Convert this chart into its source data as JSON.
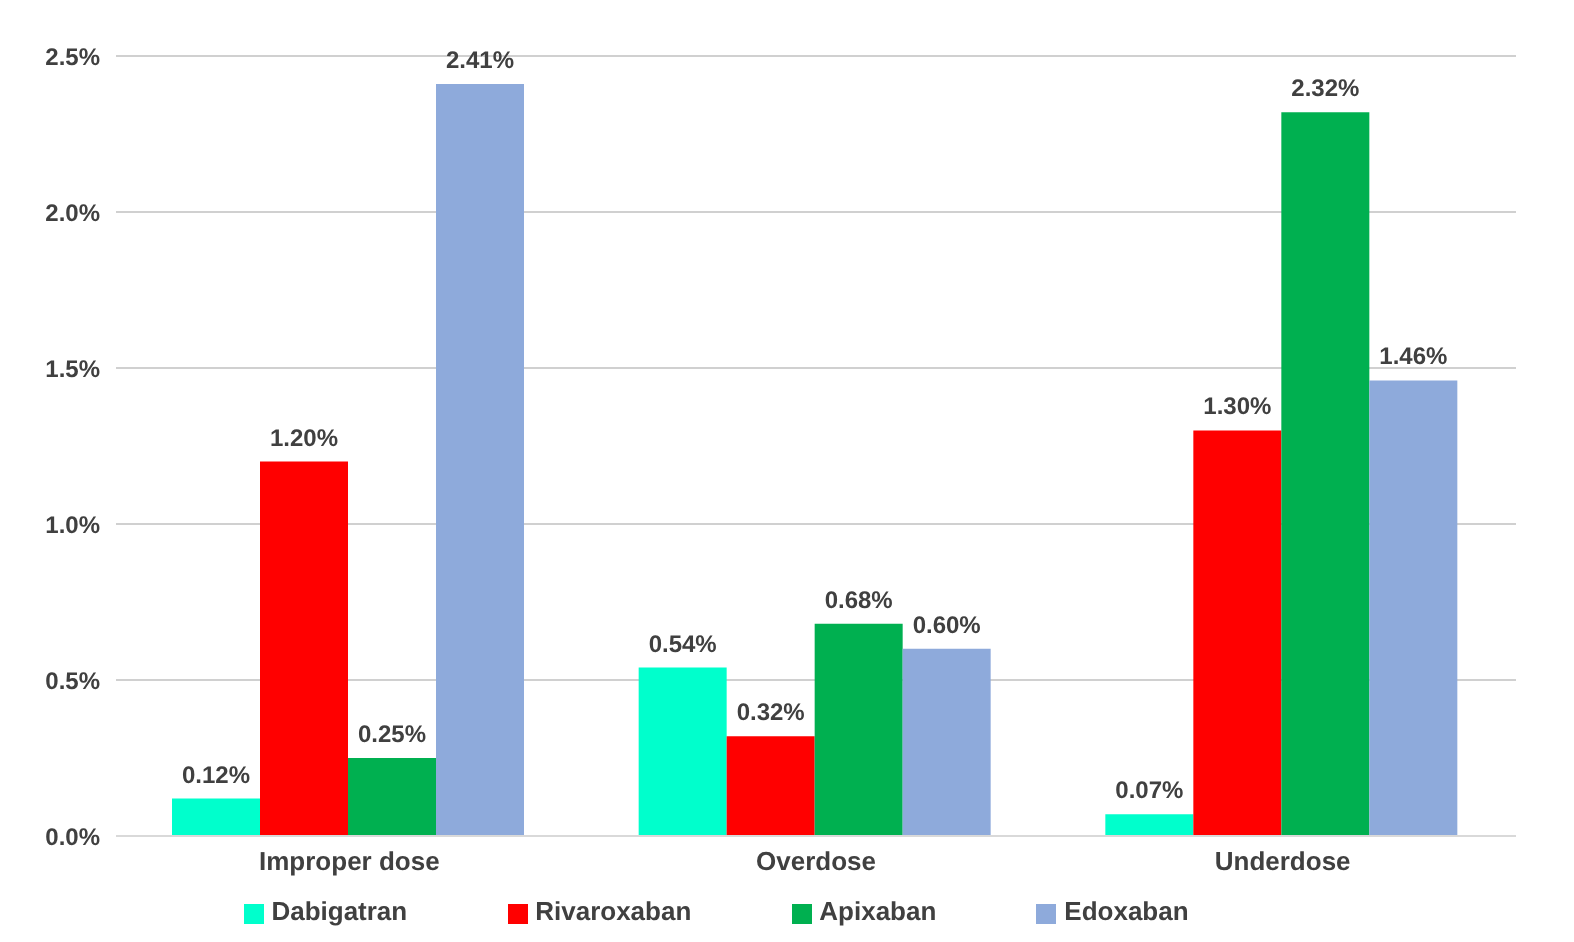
{
  "chart_data": {
    "type": "bar",
    "categories": [
      "Improper dose",
      "Overdose",
      "Underdose"
    ],
    "series": [
      {
        "name": "Dabigatran",
        "color": "#00ffcc",
        "values": [
          0.12,
          0.54,
          0.07
        ],
        "value_labels": [
          "0.12%",
          "0.54%",
          "0.07%"
        ]
      },
      {
        "name": "Rivaroxaban",
        "color": "#ff0000",
        "values": [
          1.2,
          0.32,
          1.3
        ],
        "value_labels": [
          "1.20%",
          "0.32%",
          "1.30%"
        ]
      },
      {
        "name": "Apixaban",
        "color": "#00b050",
        "values": [
          0.25,
          0.68,
          2.32
        ],
        "value_labels": [
          "0.25%",
          "0.68%",
          "2.32%"
        ]
      },
      {
        "name": "Edoxaban",
        "color": "#8eaadb",
        "values": [
          2.41,
          0.6,
          1.46
        ],
        "value_labels": [
          "2.41%",
          "0.60%",
          "1.46%"
        ]
      }
    ],
    "ylim": [
      0,
      2.5
    ],
    "yticks": [
      {
        "value": 0,
        "label": "0.0%"
      },
      {
        "value": 0.5,
        "label": "0.5%"
      },
      {
        "value": 1,
        "label": "1.0%"
      },
      {
        "value": 1.5,
        "label": "1.5%"
      },
      {
        "value": 2,
        "label": "2.0%"
      },
      {
        "value": 2.5,
        "label": "2.5%"
      }
    ],
    "grid": "y",
    "legend": "bottom"
  }
}
